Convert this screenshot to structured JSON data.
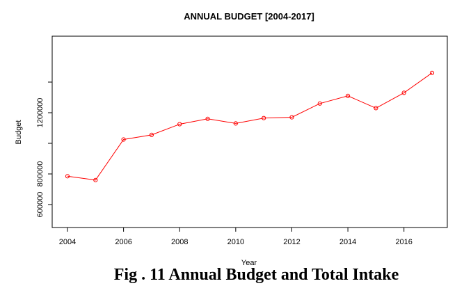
{
  "chart_data": {
    "type": "line",
    "title": "ANNUAL BUDGET [2004-2017]",
    "xlabel": "Year",
    "ylabel": "Budget",
    "x": [
      2004,
      2005,
      2006,
      2007,
      2008,
      2009,
      2010,
      2011,
      2012,
      2013,
      2014,
      2015,
      2016,
      2017
    ],
    "series": [
      {
        "values": [
          785000,
          760000,
          1025000,
          1055000,
          1125000,
          1160000,
          1130000,
          1165000,
          1170000,
          1260000,
          1310000,
          1230000,
          1330000,
          1460000
        ],
        "color": "#ff0000"
      }
    ],
    "xticks": [
      "2004",
      "2006",
      "2008",
      "2010",
      "2012",
      "2014",
      "2016"
    ],
    "yticks": [
      "600000",
      "800000",
      "1200000"
    ],
    "xlim": [
      2004,
      2017
    ],
    "ylim": [
      450000,
      1700000
    ],
    "grid": false,
    "marker": "open-circle"
  },
  "caption": "Fig . 11 Annual Budget and Total Intake"
}
